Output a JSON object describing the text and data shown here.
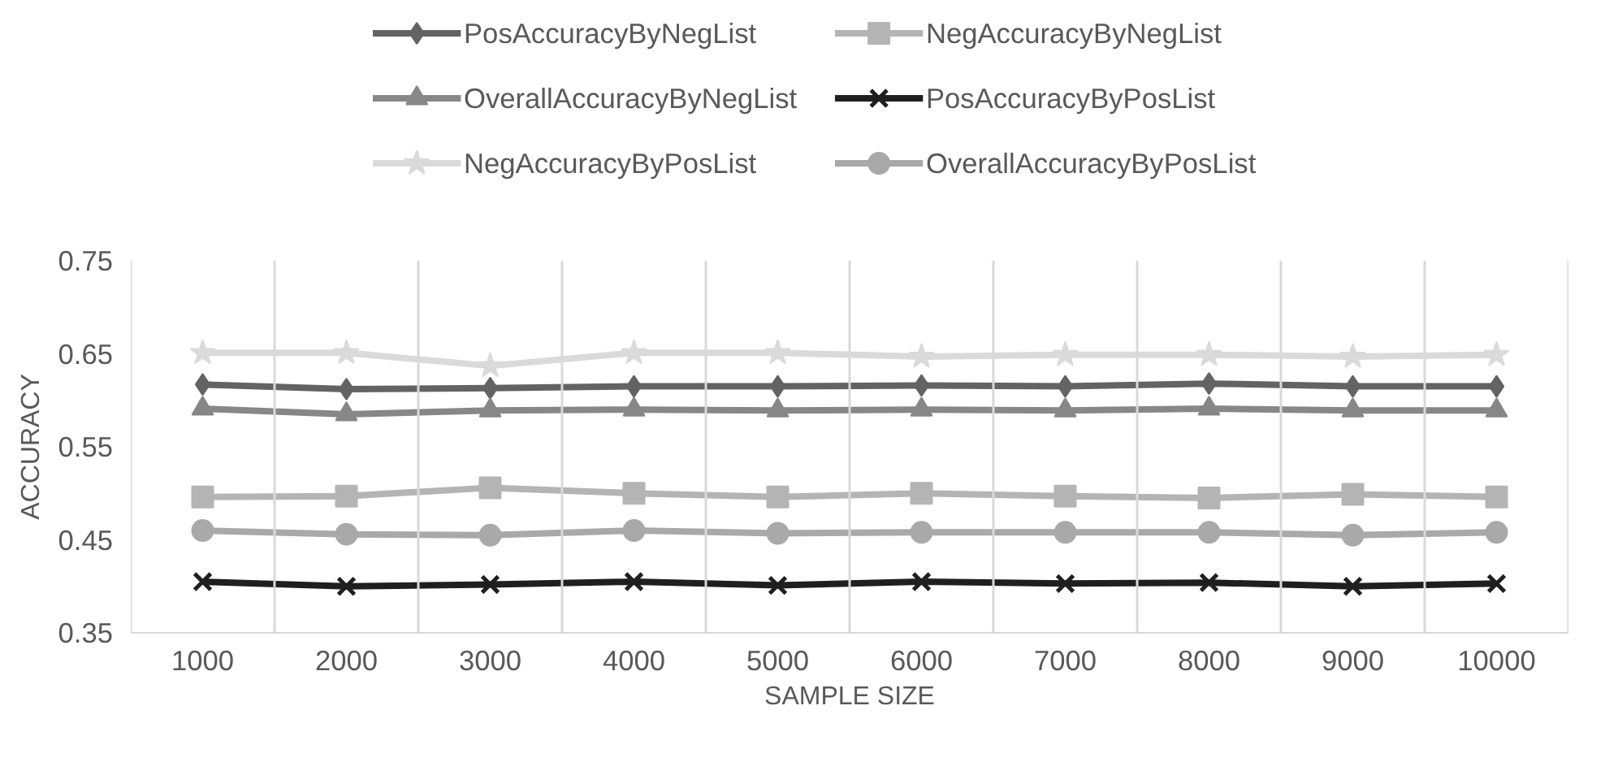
{
  "chart_data": {
    "type": "line",
    "xlabel": "SAMPLE SIZE",
    "ylabel": "ACCURACY",
    "categories": [
      "1000",
      "2000",
      "3000",
      "4000",
      "5000",
      "6000",
      "7000",
      "8000",
      "9000",
      "10000"
    ],
    "ylim": [
      0.35,
      0.75
    ],
    "yticks": [
      0.35,
      0.45,
      0.55,
      0.65,
      0.75
    ],
    "grid": "x",
    "legend": "top",
    "series": [
      {
        "name": "PosAccuracyByNegList",
        "color": "#636363",
        "marker": "diamond",
        "values": [
          0.617,
          0.612,
          0.613,
          0.615,
          0.615,
          0.616,
          0.615,
          0.618,
          0.615,
          0.615
        ]
      },
      {
        "name": "NegAccuracyByNegList",
        "color": "#b4b4b4",
        "marker": "square",
        "values": [
          0.496,
          0.497,
          0.506,
          0.5,
          0.496,
          0.5,
          0.497,
          0.495,
          0.499,
          0.496
        ]
      },
      {
        "name": "OverallAccuracyByNegList",
        "color": "#878787",
        "marker": "triangle",
        "values": [
          0.591,
          0.585,
          0.589,
          0.59,
          0.589,
          0.59,
          0.589,
          0.591,
          0.589,
          0.589
        ]
      },
      {
        "name": "PosAccuracyByPosList",
        "color": "#1f1f1f",
        "marker": "cross",
        "values": [
          0.405,
          0.4,
          0.402,
          0.405,
          0.401,
          0.405,
          0.403,
          0.404,
          0.4,
          0.403
        ]
      },
      {
        "name": "NegAccuracyByPosList",
        "color": "#dadada",
        "marker": "star",
        "values": [
          0.651,
          0.651,
          0.637,
          0.651,
          0.651,
          0.647,
          0.649,
          0.649,
          0.647,
          0.649
        ]
      },
      {
        "name": "OverallAccuracyByPosList",
        "color": "#a9a9a9",
        "marker": "circle",
        "values": [
          0.46,
          0.456,
          0.455,
          0.46,
          0.457,
          0.458,
          0.458,
          0.458,
          0.455,
          0.458
        ]
      }
    ]
  }
}
